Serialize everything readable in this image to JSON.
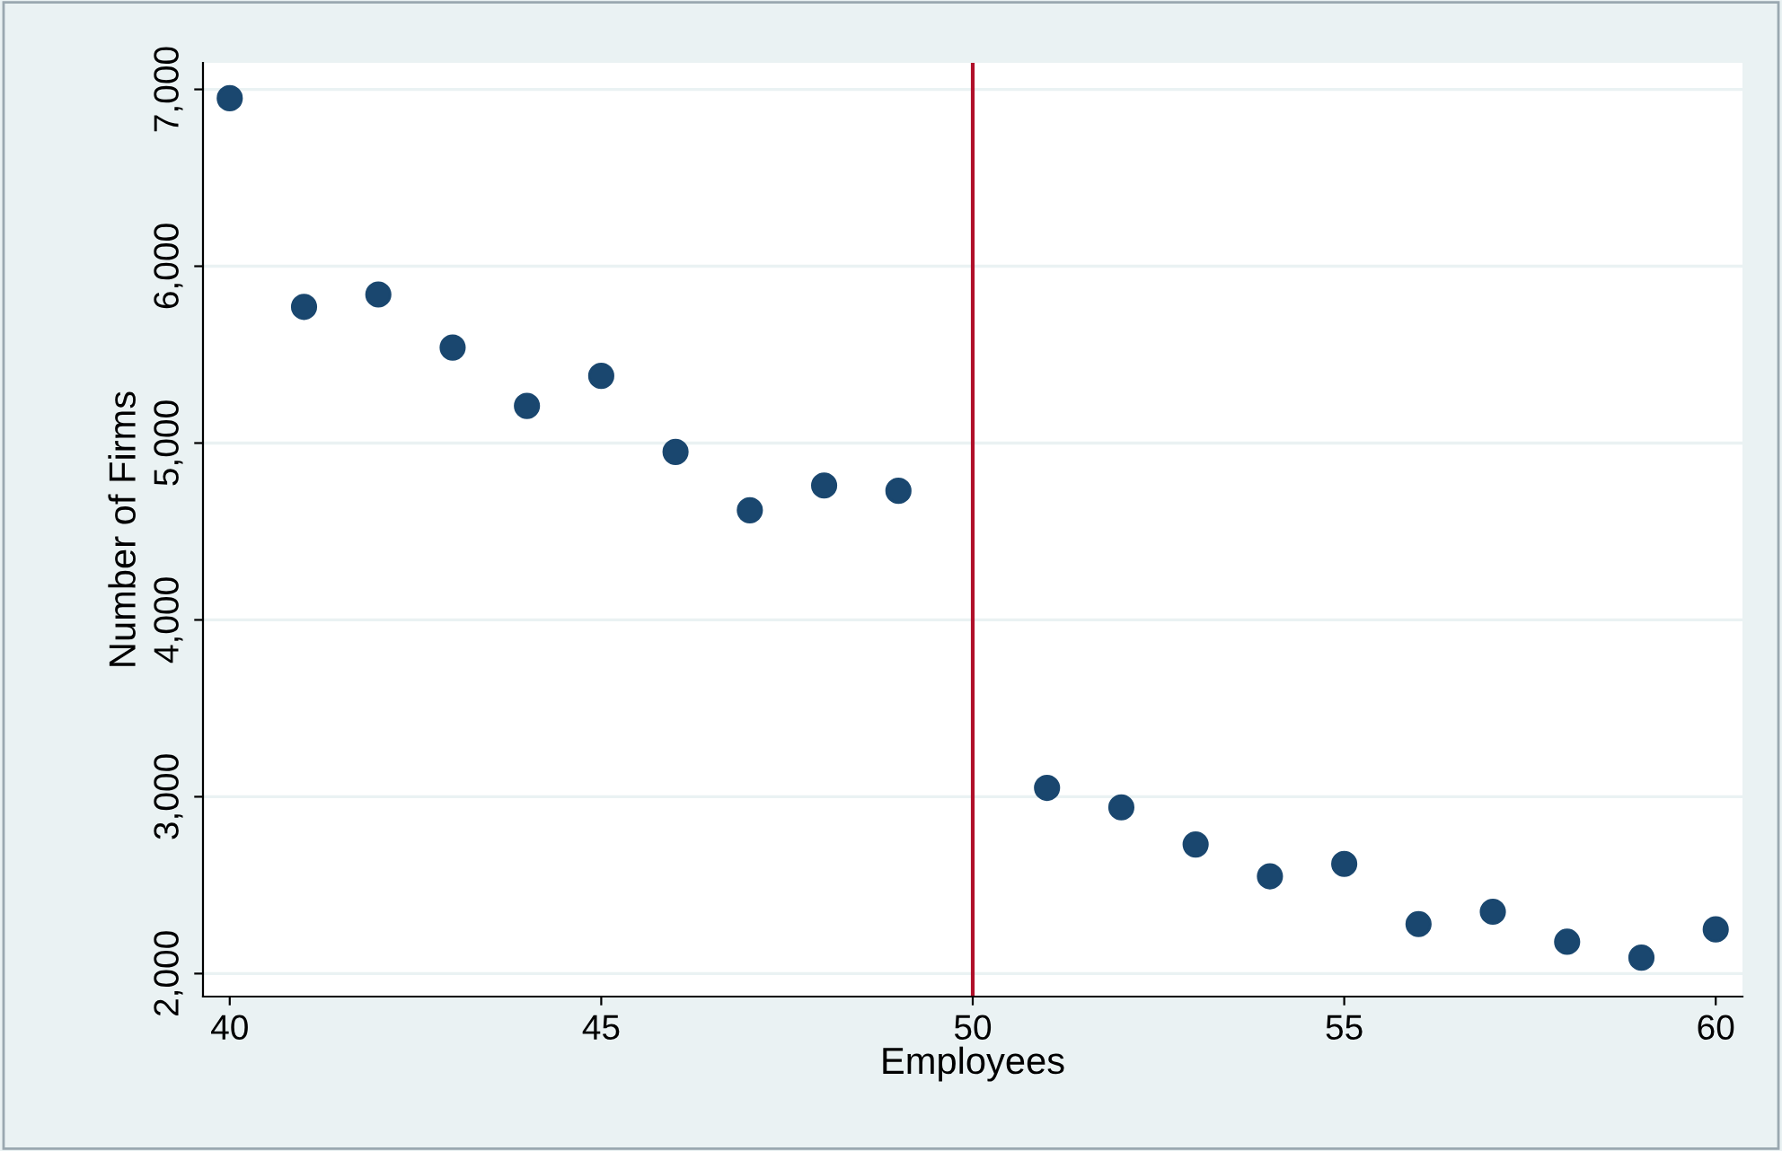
{
  "chart_data": {
    "type": "scatter",
    "xlabel": "Employees",
    "ylabel": "Number of Firms",
    "x": [
      40,
      41,
      42,
      43,
      44,
      45,
      46,
      47,
      48,
      49,
      51,
      52,
      53,
      54,
      55,
      56,
      57,
      58,
      59,
      60
    ],
    "series": [
      {
        "color": "#1a476f",
        "values": [
          6950,
          5770,
          5840,
          5540,
          5210,
          5380,
          4950,
          4620,
          4760,
          4730,
          3050,
          2940,
          2730,
          2550,
          2620,
          2280,
          2350,
          2180,
          2090,
          2250
        ]
      }
    ],
    "xlim": [
      39.64,
      60.36
    ],
    "ylim": [
      1870,
      7150
    ],
    "xticks": [
      40,
      45,
      50,
      55,
      60
    ],
    "yticks": [
      {
        "value": 2000,
        "label": "2,000"
      },
      {
        "value": 3000,
        "label": "3,000"
      },
      {
        "value": 4000,
        "label": "4,000"
      },
      {
        "value": 5000,
        "label": "5,000"
      },
      {
        "value": 6000,
        "label": "6,000"
      },
      {
        "value": 7000,
        "label": "7,000"
      }
    ],
    "ref_lines": [
      {
        "axis": "x",
        "value": 50,
        "color": "#b0102a"
      }
    ],
    "grid": "y",
    "marker": "circle",
    "legend": false
  }
}
